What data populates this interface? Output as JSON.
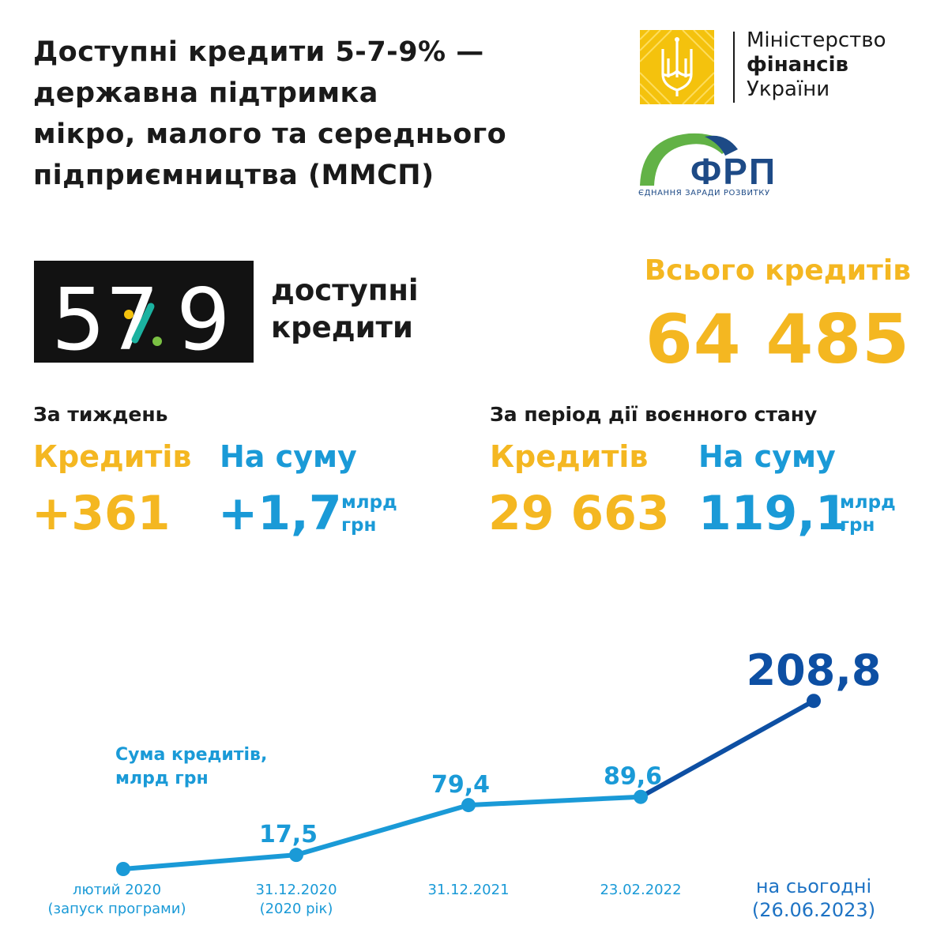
{
  "title": {
    "lines": [
      "Доступні кредити 5-7-9% —",
      "державна підтримка",
      "мікро, малого та середнього",
      "підприємництва (ММСП)"
    ]
  },
  "ministry_logo": {
    "line1": "Міністерство",
    "line2": "фінансів",
    "line3": "України"
  },
  "frp_logo": {
    "name": "ФРП",
    "slogan": "ЄДНАННЯ ЗАРАДИ РОЗВИТКУ"
  },
  "program": {
    "badge": "579",
    "line1": "доступні",
    "line2": "кредити"
  },
  "total": {
    "label": "Всього кредитів",
    "value": "64 485"
  },
  "week": {
    "heading": "За тиждень",
    "credits_label": "Кредитів",
    "credits_value": "+361",
    "sum_label": "На суму",
    "sum_value": "+1,7",
    "unit_line1": "млрд",
    "unit_line2": "грн"
  },
  "martial": {
    "heading": "За період дії воєнного стану",
    "credits_label": "Кредитів",
    "credits_value": "29 663",
    "sum_label": "На суму",
    "sum_value": "119,1",
    "unit_line1": "млрд",
    "unit_line2": "грн"
  },
  "colors": {
    "yellow": "#f4b721",
    "blue": "#1a9ad7",
    "dark_blue": "#0d4fa3",
    "green": "#62b246",
    "navy": "#1d4a86"
  },
  "chart_data": {
    "type": "line",
    "title": "Сума кредитів,",
    "ylabel": "млрд грн",
    "categories": [
      [
        "лютий 2020",
        "(запуск програми)"
      ],
      [
        "31.12.2020",
        "(2020 рік)"
      ],
      [
        "31.12.2021"
      ],
      [
        "23.02.2022"
      ],
      [
        "на сьогодні",
        "(26.06.2023)"
      ]
    ],
    "values": [
      null,
      17.5,
      79.4,
      89.6,
      208.8
    ],
    "start_value_unlabeled": 0,
    "value_labels": [
      "",
      "17,5",
      "79,4",
      "89,6",
      "208,8"
    ],
    "ylim": [
      0,
      210
    ],
    "grid": false
  }
}
